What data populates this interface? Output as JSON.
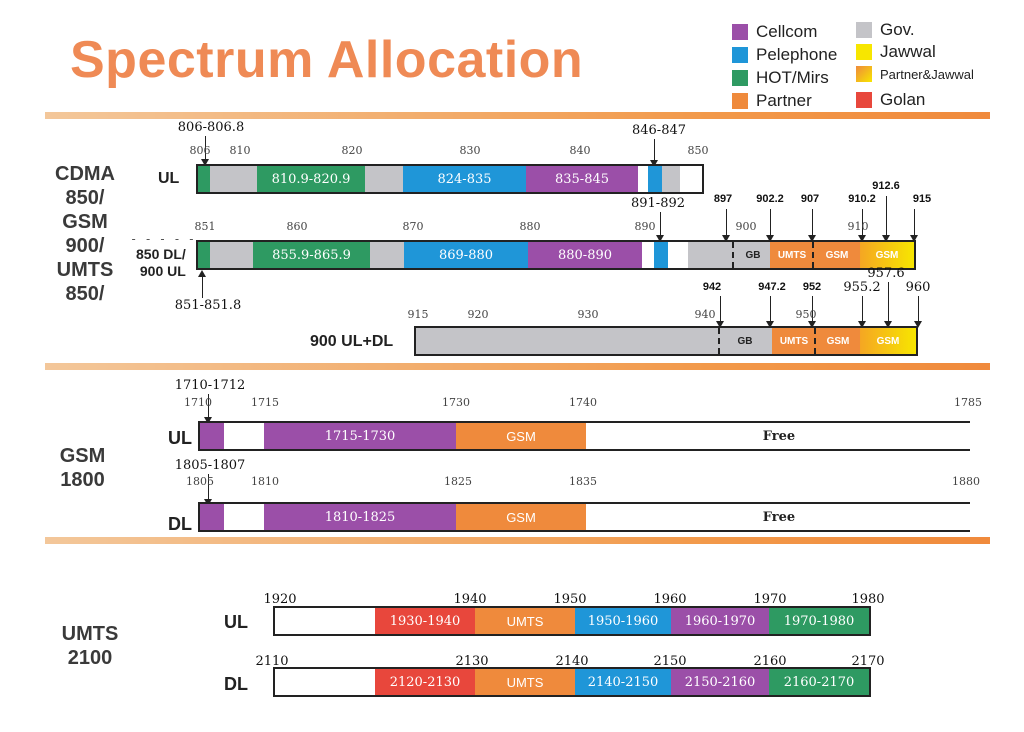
{
  "title": "Spectrum Allocation",
  "legend": [
    {
      "label": "Cellcom",
      "color": "#9b4fa8"
    },
    {
      "label": "Pelephone",
      "color": "#1f96d8"
    },
    {
      "label": "HOT/Mirs",
      "color": "#2e9a62"
    },
    {
      "label": "Partner",
      "color": "#ef8a3c"
    },
    {
      "label": "Gov.",
      "color": "#c4c4c8"
    },
    {
      "label": "Jawwal",
      "color": "#f7e600"
    },
    {
      "label": "Partner&Jawwal",
      "color": "#f5b229"
    },
    {
      "label": "Golan",
      "color": "#e8473c"
    }
  ],
  "sections": {
    "cdma": "CDMA 850/ GSM 900/ UMTS 850/",
    "gsm1800": "GSM 1800",
    "umts2100": "UMTS 2100"
  },
  "rows": {
    "r1": {
      "label": "UL",
      "ticks": [
        "806",
        "810",
        "820",
        "830",
        "840",
        "850"
      ],
      "segments": [
        "810.9-820.9",
        "824-835",
        "835-845"
      ],
      "annot": {
        "top_left": "806-806.8",
        "top_right": "846-847",
        "bottom": "891-892"
      }
    },
    "r2": {
      "label_line1": "850 DL/",
      "label_line2": "900 UL",
      "ticks": [
        "851",
        "860",
        "870",
        "880",
        "890",
        "900",
        "910"
      ],
      "segments": [
        "855.9-865.9",
        "869-880",
        "880-890",
        "GB",
        "UMTS",
        "GSM",
        "GSM"
      ],
      "annot": {
        "a": "897",
        "b": "902.2",
        "c": "907",
        "d": "910.2",
        "e": "912.6",
        "f": "915",
        "bottom": "851-851.8"
      }
    },
    "r3": {
      "label": "900 UL+DL",
      "ticks": [
        "915",
        "920",
        "930",
        "940",
        "950"
      ],
      "segments": [
        "GB",
        "UMTS",
        "GSM",
        "GSM"
      ],
      "annot": {
        "a": "942",
        "b": "947.2",
        "c": "952",
        "d": "955.2",
        "e": "957.6",
        "f": "960"
      }
    },
    "r4": {
      "label": "UL",
      "ticks": [
        "1710",
        "1715",
        "1730",
        "1740",
        "1785"
      ],
      "segments": [
        "1715-1730",
        "GSM",
        "Free"
      ],
      "annot": {
        "top_left": "1710-1712"
      }
    },
    "r5": {
      "label": "DL",
      "ticks": [
        "1805",
        "1810",
        "1825",
        "1835",
        "1880"
      ],
      "segments": [
        "1810-1825",
        "GSM",
        "Free"
      ],
      "annot": {
        "top_left": "1805-1807"
      }
    },
    "r6": {
      "label": "UL",
      "ticks": [
        "1920",
        "1940",
        "1950",
        "1960",
        "1970",
        "1980"
      ],
      "segments": [
        "1930-1940",
        "UMTS",
        "1950-1960",
        "1960-1970",
        "1970-1980"
      ]
    },
    "r7": {
      "label": "DL",
      "ticks": [
        "2110",
        "2130",
        "2140",
        "2150",
        "2160",
        "2170"
      ],
      "segments": [
        "2120-2130",
        "UMTS",
        "2140-2150",
        "2150-2160",
        "2160-2170"
      ]
    }
  }
}
